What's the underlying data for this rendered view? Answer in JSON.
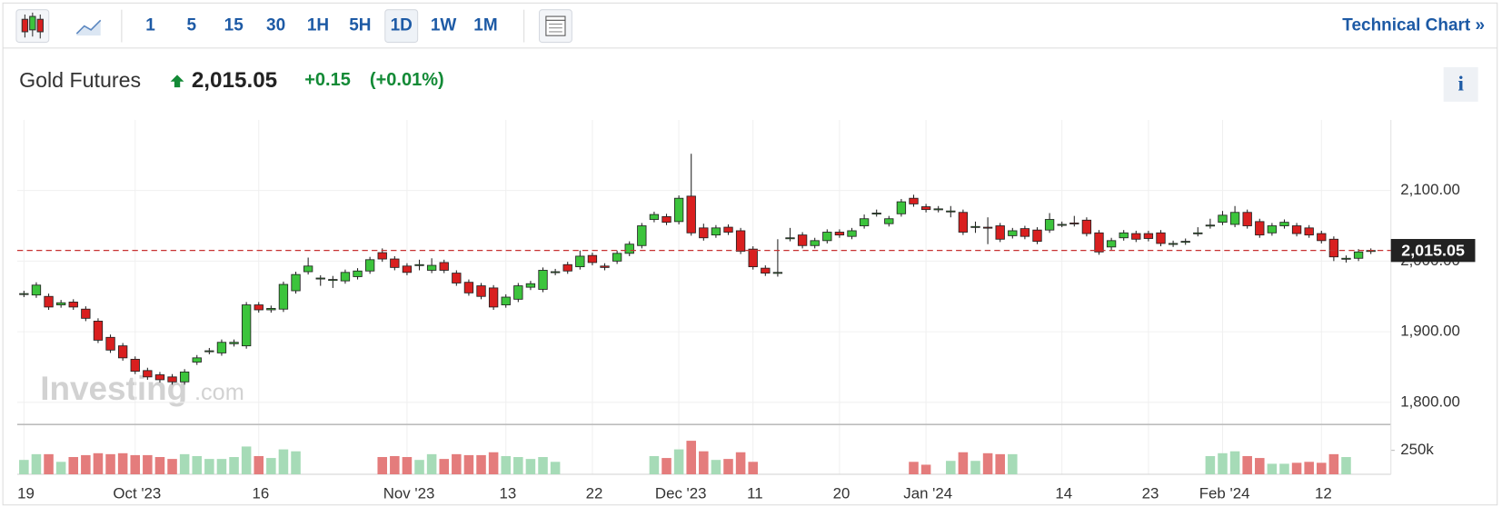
{
  "toolbar": {
    "intervals": [
      "1",
      "5",
      "15",
      "30",
      "1H",
      "5H",
      "1D",
      "1W",
      "1M"
    ],
    "active": "1D",
    "link": "Technical Chart »"
  },
  "header": {
    "title": "Gold Futures",
    "price": "2,015.05",
    "change": "+0.15",
    "change_percent": "(+0.01%)",
    "info": "i"
  },
  "watermark": {
    "brand": "Investing",
    "suffix": ".com"
  },
  "chart_data": {
    "type": "candlestick",
    "categories": [
      "19",
      null,
      null,
      null,
      null,
      null,
      null,
      null,
      null,
      "Oct '23",
      null,
      null,
      null,
      null,
      null,
      null,
      null,
      null,
      null,
      "16",
      null,
      null,
      null,
      null,
      null,
      null,
      null,
      null,
      null,
      null,
      null,
      "Nov '23",
      null,
      null,
      null,
      null,
      null,
      null,
      null,
      "13",
      null,
      null,
      null,
      null,
      null,
      null,
      "22",
      null,
      null,
      null,
      null,
      null,
      null,
      "Dec '23",
      null,
      null,
      null,
      null,
      null,
      "11",
      null,
      null,
      null,
      null,
      null,
      null,
      "20",
      null,
      null,
      null,
      null,
      null,
      null,
      "Jan '24",
      null,
      null,
      null,
      null,
      null,
      null,
      null,
      null,
      null,
      null,
      "14",
      null,
      null,
      null,
      null,
      null,
      null,
      "23",
      null,
      null,
      null,
      null,
      null,
      "Feb '24",
      null,
      null,
      null,
      null,
      null,
      null,
      null,
      "12",
      null,
      null,
      null,
      null
    ],
    "open": [
      1953,
      1952,
      1950,
      1938,
      1942,
      1932,
      1915,
      1892,
      1880,
      1861,
      1845,
      1839,
      1836,
      1829,
      1857,
      1872,
      1870,
      1883,
      1880,
      1938,
      1931,
      1932,
      1958,
      1985,
      1975,
      1973,
      1972,
      1978,
      1986,
      2012,
      2003,
      1993,
      1994,
      1987,
      1998,
      1983,
      1970,
      1965,
      1962,
      1938,
      1946,
      1963,
      1960,
      1984,
      1995,
      1992,
      2008,
      1993,
      2000,
      2011,
      2022,
      2059,
      2063,
      2056,
      2092,
      2047,
      2037,
      2048,
      2043,
      2017,
      1990,
      1983,
      2032,
      2037,
      2022,
      2029,
      2041,
      2035,
      2050,
      2067,
      2053,
      2067,
      2089,
      2077,
      2073,
      2070,
      2069,
      2048,
      2048,
      2050,
      2036,
      2046,
      2044,
      2044,
      2051,
      2054,
      2058,
      2040,
      2020,
      2033,
      2039,
      2039,
      2040,
      2024,
      2027,
      2039,
      2050,
      2055,
      2052,
      2069,
      2056,
      2040,
      2050,
      2050,
      2047,
      2039,
      2031,
      2003,
      2004,
      2014
    ],
    "high": [
      1958,
      1970,
      1954,
      1945,
      1946,
      1936,
      1919,
      1896,
      1884,
      1865,
      1849,
      1843,
      1840,
      1847,
      1867,
      1877,
      1889,
      1889,
      1942,
      1942,
      1937,
      1971,
      1985,
      2005,
      1980,
      1979,
      1988,
      1990,
      2006,
      2018,
      2007,
      1997,
      2002,
      2004,
      2002,
      1987,
      1974,
      1969,
      1966,
      1953,
      1969,
      1972,
      1991,
      1989,
      1999,
      2015,
      2012,
      1997,
      2015,
      2028,
      2054,
      2070,
      2067,
      2093,
      2152,
      2053,
      2051,
      2052,
      2047,
      2021,
      1994,
      2031,
      2047,
      2041,
      2033,
      2045,
      2045,
      2047,
      2066,
      2073,
      2064,
      2088,
      2094,
      2081,
      2078,
      2078,
      2073,
      2056,
      2062,
      2054,
      2047,
      2050,
      2048,
      2068,
      2056,
      2064,
      2062,
      2044,
      2033,
      2044,
      2043,
      2043,
      2044,
      2029,
      2032,
      2048,
      2060,
      2071,
      2078,
      2073,
      2060,
      2054,
      2059,
      2054,
      2051,
      2043,
      2035,
      2008,
      2017,
      2018
    ],
    "low": [
      1949,
      1948,
      1931,
      1934,
      1931,
      1915,
      1884,
      1870,
      1859,
      1840,
      1832,
      1828,
      1825,
      1825,
      1853,
      1868,
      1866,
      1879,
      1876,
      1927,
      1927,
      1928,
      1954,
      1981,
      1965,
      1962,
      1968,
      1974,
      1982,
      1999,
      1987,
      1980,
      1987,
      1983,
      1983,
      1965,
      1951,
      1946,
      1931,
      1934,
      1942,
      1959,
      1956,
      1980,
      1982,
      1988,
      1994,
      1987,
      1996,
      2007,
      2018,
      2055,
      2051,
      2052,
      2036,
      2029,
      2033,
      2037,
      2010,
      1988,
      1979,
      1978,
      2028,
      2018,
      2018,
      2025,
      2033,
      2031,
      2046,
      2063,
      2049,
      2063,
      2077,
      2069,
      2069,
      2062,
      2037,
      2040,
      2024,
      2027,
      2032,
      2031,
      2024,
      2040,
      2048,
      2049,
      2035,
      2009,
      2016,
      2029,
      2027,
      2028,
      2021,
      2020,
      2023,
      2035,
      2046,
      2051,
      2048,
      2046,
      2033,
      2036,
      2046,
      2035,
      2033,
      2025,
      2000,
      1998,
      2000,
      2010
    ],
    "close": [
      1954,
      1966,
      1935,
      1941,
      1935,
      1919,
      1888,
      1874,
      1863,
      1844,
      1836,
      1832,
      1829,
      1843,
      1863,
      1873,
      1885,
      1885,
      1938,
      1931,
      1933,
      1967,
      1981,
      1993,
      1976,
      1974,
      1984,
      1986,
      2002,
      2003,
      1991,
      1984,
      1995,
      1994,
      1987,
      1969,
      1955,
      1950,
      1935,
      1949,
      1965,
      1968,
      1987,
      1985,
      1986,
      2007,
      1998,
      1991,
      2011,
      2024,
      2050,
      2066,
      2055,
      2089,
      2040,
      2033,
      2047,
      2041,
      2014,
      1992,
      1983,
      1984,
      2033,
      2022,
      2029,
      2041,
      2037,
      2043,
      2060,
      2068,
      2060,
      2084,
      2081,
      2073,
      2074,
      2071,
      2041,
      2049,
      2047,
      2031,
      2043,
      2035,
      2028,
      2059,
      2052,
      2053,
      2039,
      2013,
      2029,
      2040,
      2031,
      2032,
      2025,
      2025,
      2028,
      2040,
      2051,
      2065,
      2069,
      2050,
      2037,
      2050,
      2055,
      2039,
      2037,
      2029,
      2006,
      2004,
      2013,
      2015
    ],
    "volume": [
      150000,
      210000,
      210000,
      130000,
      180000,
      200000,
      220000,
      210000,
      220000,
      200000,
      200000,
      180000,
      160000,
      210000,
      190000,
      160000,
      160000,
      180000,
      290000,
      190000,
      170000,
      260000,
      240000,
      null,
      null,
      null,
      null,
      null,
      null,
      180000,
      190000,
      180000,
      150000,
      210000,
      160000,
      210000,
      200000,
      200000,
      230000,
      190000,
      180000,
      160000,
      180000,
      130000,
      null,
      null,
      null,
      null,
      null,
      null,
      null,
      190000,
      170000,
      260000,
      350000,
      240000,
      150000,
      160000,
      230000,
      130000,
      null,
      null,
      null,
      null,
      null,
      null,
      null,
      null,
      null,
      null,
      null,
      null,
      130000,
      100000,
      null,
      140000,
      230000,
      140000,
      220000,
      210000,
      210000,
      null,
      null,
      null,
      null,
      null,
      null,
      null,
      null,
      null,
      null,
      null,
      null,
      null,
      null,
      null,
      190000,
      220000,
      240000,
      190000,
      170000,
      110000,
      110000,
      120000,
      130000,
      120000,
      210000,
      180000,
      null,
      null
    ],
    "ylim": [
      1770,
      2200
    ],
    "yticks": [
      {
        "value": 1800,
        "label": "1,800.00"
      },
      {
        "value": 1900,
        "label": "1,900.00"
      },
      {
        "value": 2000,
        "label": "2,000.00"
      },
      {
        "value": 2100,
        "label": "2,100.00"
      }
    ],
    "volume_ylim": [
      0,
      520000
    ],
    "volume_yticks": [
      {
        "value": 250000,
        "label": "250k"
      }
    ],
    "last_price": {
      "value": 2015.05,
      "label": "2,015.05"
    },
    "up_color": "#3cc43c",
    "down_color": "#d91f1f",
    "volume_up_color": "#a6dbb7",
    "volume_down_color": "#e47c7c",
    "last_price_color": "#c83232",
    "grid": true
  }
}
